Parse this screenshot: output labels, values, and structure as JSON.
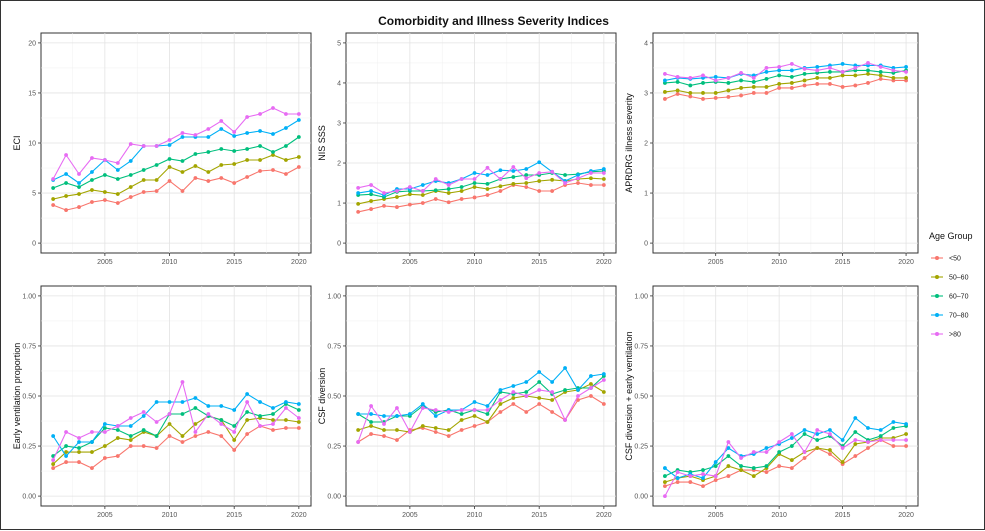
{
  "figure": {
    "title": "Comorbidity and Illness Severity Indices"
  },
  "legend": {
    "title": "Age Group",
    "items": [
      {
        "label": "<50",
        "color": "#F8766D"
      },
      {
        "label": "50–60",
        "color": "#A3A500"
      },
      {
        "label": "60–70",
        "color": "#00BF7D"
      },
      {
        "label": "70–80",
        "color": "#00B0F6"
      },
      {
        "label": ">80",
        "color": "#E76BF3"
      }
    ]
  },
  "chart_data": [
    {
      "type": "line",
      "ylabel": "ECI",
      "xlim": [
        2001,
        2020
      ],
      "ylim": [
        0,
        20
      ],
      "x_ticks": [
        2005,
        2010,
        2015,
        2020
      ],
      "y_ticks": [
        0,
        5,
        10,
        15,
        20
      ],
      "y_tick_labels": [
        "0",
        "5",
        "10",
        "15",
        "20"
      ],
      "x": [
        2001,
        2002,
        2003,
        2004,
        2005,
        2006,
        2007,
        2008,
        2009,
        2010,
        2011,
        2012,
        2013,
        2014,
        2015,
        2016,
        2017,
        2018,
        2019,
        2020
      ],
      "series": [
        {
          "name": "<50",
          "values": [
            3.8,
            3.3,
            3.6,
            4.1,
            4.3,
            4.0,
            4.6,
            5.1,
            5.2,
            6.2,
            5.2,
            6.5,
            6.2,
            6.5,
            6.0,
            6.6,
            7.2,
            7.3,
            6.9,
            7.6
          ]
        },
        {
          "name": "50–60",
          "values": [
            4.4,
            4.7,
            4.9,
            5.3,
            5.1,
            4.9,
            5.6,
            6.3,
            6.3,
            7.6,
            7.1,
            7.7,
            7.1,
            7.8,
            7.9,
            8.3,
            8.3,
            8.8,
            8.3,
            8.6
          ]
        },
        {
          "name": "60–70",
          "values": [
            5.5,
            6.0,
            5.6,
            6.3,
            6.8,
            6.4,
            6.8,
            7.3,
            7.8,
            8.4,
            8.2,
            8.9,
            9.1,
            9.4,
            9.2,
            9.4,
            9.7,
            9.1,
            9.7,
            10.6
          ]
        },
        {
          "name": "70–80",
          "values": [
            6.3,
            6.9,
            6.0,
            7.1,
            8.3,
            7.3,
            8.2,
            9.7,
            9.7,
            9.8,
            10.6,
            10.6,
            10.6,
            11.4,
            10.7,
            11.0,
            11.2,
            10.9,
            11.5,
            12.3
          ]
        },
        {
          "name": ">80",
          "values": [
            6.4,
            8.8,
            6.9,
            8.5,
            8.3,
            8.0,
            9.9,
            9.7,
            9.7,
            10.3,
            11.0,
            10.8,
            11.4,
            12.2,
            11.1,
            12.6,
            12.9,
            13.5,
            12.9,
            12.9
          ]
        }
      ]
    },
    {
      "type": "line",
      "ylabel": "NIS SSS",
      "xlim": [
        2001,
        2020
      ],
      "ylim": [
        0,
        5
      ],
      "x_ticks": [
        2005,
        2010,
        2015,
        2020
      ],
      "y_ticks": [
        0,
        1,
        2,
        3,
        4,
        5
      ],
      "y_tick_labels": [
        "0",
        "1",
        "2",
        "3",
        "4",
        "5"
      ],
      "x": [
        2001,
        2002,
        2003,
        2004,
        2005,
        2006,
        2007,
        2008,
        2009,
        2010,
        2011,
        2012,
        2013,
        2014,
        2015,
        2016,
        2017,
        2018,
        2019,
        2020
      ],
      "series": [
        {
          "name": "<50",
          "values": [
            0.78,
            0.85,
            0.93,
            0.9,
            0.96,
            1.0,
            1.1,
            1.02,
            1.1,
            1.14,
            1.2,
            1.3,
            1.45,
            1.4,
            1.3,
            1.3,
            1.45,
            1.5,
            1.45,
            1.45
          ]
        },
        {
          "name": "50–60",
          "values": [
            0.98,
            1.05,
            1.1,
            1.15,
            1.22,
            1.2,
            1.3,
            1.25,
            1.3,
            1.4,
            1.35,
            1.42,
            1.48,
            1.5,
            1.55,
            1.58,
            1.55,
            1.6,
            1.62,
            1.6
          ]
        },
        {
          "name": "60–70",
          "values": [
            1.2,
            1.22,
            1.15,
            1.28,
            1.3,
            1.3,
            1.32,
            1.35,
            1.4,
            1.5,
            1.48,
            1.6,
            1.65,
            1.7,
            1.7,
            1.75,
            1.7,
            1.72,
            1.78,
            1.8
          ]
        },
        {
          "name": "70–80",
          "values": [
            1.25,
            1.3,
            1.2,
            1.35,
            1.35,
            1.45,
            1.55,
            1.5,
            1.6,
            1.75,
            1.7,
            1.82,
            1.8,
            1.85,
            2.02,
            1.78,
            1.55,
            1.7,
            1.8,
            1.85
          ]
        },
        {
          "name": ">80",
          "values": [
            1.38,
            1.45,
            1.25,
            1.3,
            1.4,
            1.3,
            1.6,
            1.45,
            1.6,
            1.6,
            1.88,
            1.6,
            1.9,
            1.62,
            1.75,
            1.78,
            1.5,
            1.62,
            1.75,
            1.75
          ]
        }
      ]
    },
    {
      "type": "line",
      "ylabel": "APRDRG illness severity",
      "xlim": [
        2001,
        2020
      ],
      "ylim": [
        0,
        4
      ],
      "x_ticks": [
        2005,
        2010,
        2015,
        2020
      ],
      "y_ticks": [
        0,
        1,
        2,
        3,
        4
      ],
      "y_tick_labels": [
        "0",
        "1",
        "2",
        "3",
        "4"
      ],
      "x": [
        2001,
        2002,
        2003,
        2004,
        2005,
        2006,
        2007,
        2008,
        2009,
        2010,
        2011,
        2012,
        2013,
        2014,
        2015,
        2016,
        2017,
        2018,
        2019,
        2020
      ],
      "series": [
        {
          "name": "<50",
          "values": [
            2.88,
            2.98,
            2.93,
            2.88,
            2.9,
            2.92,
            2.95,
            3.0,
            3.0,
            3.1,
            3.1,
            3.15,
            3.18,
            3.18,
            3.12,
            3.15,
            3.2,
            3.28,
            3.25,
            3.25
          ]
        },
        {
          "name": "50–60",
          "values": [
            3.02,
            3.05,
            3.0,
            3.0,
            3.0,
            3.05,
            3.1,
            3.12,
            3.12,
            3.18,
            3.2,
            3.25,
            3.3,
            3.3,
            3.35,
            3.35,
            3.38,
            3.35,
            3.3,
            3.3
          ]
        },
        {
          "name": "60–70",
          "values": [
            3.2,
            3.22,
            3.15,
            3.2,
            3.22,
            3.2,
            3.25,
            3.22,
            3.28,
            3.35,
            3.32,
            3.38,
            3.4,
            3.42,
            3.42,
            3.45,
            3.45,
            3.42,
            3.4,
            3.45
          ]
        },
        {
          "name": "70–80",
          "values": [
            3.25,
            3.3,
            3.28,
            3.3,
            3.32,
            3.3,
            3.38,
            3.35,
            3.42,
            3.45,
            3.45,
            3.5,
            3.52,
            3.55,
            3.58,
            3.55,
            3.55,
            3.55,
            3.5,
            3.52
          ]
        },
        {
          "name": ">80",
          "values": [
            3.38,
            3.32,
            3.3,
            3.35,
            3.25,
            3.3,
            3.4,
            3.3,
            3.5,
            3.52,
            3.58,
            3.48,
            3.45,
            3.5,
            3.42,
            3.5,
            3.6,
            3.52,
            3.45,
            3.42
          ]
        }
      ]
    },
    {
      "type": "line",
      "ylabel": "Early ventilation proportion",
      "xlim": [
        2001,
        2020
      ],
      "ylim": [
        0,
        1
      ],
      "x_ticks": [
        2005,
        2010,
        2015,
        2020
      ],
      "y_ticks": [
        0,
        0.25,
        0.5,
        0.75,
        1
      ],
      "y_tick_labels": [
        "0.00",
        "0.25",
        "0.50",
        "0.75",
        "1.00"
      ],
      "x": [
        2001,
        2002,
        2003,
        2004,
        2005,
        2006,
        2007,
        2008,
        2009,
        2010,
        2011,
        2012,
        2013,
        2014,
        2015,
        2016,
        2017,
        2018,
        2019,
        2020
      ],
      "series": [
        {
          "name": "<50",
          "values": [
            0.14,
            0.17,
            0.17,
            0.14,
            0.19,
            0.2,
            0.25,
            0.25,
            0.24,
            0.3,
            0.27,
            0.3,
            0.32,
            0.3,
            0.23,
            0.31,
            0.35,
            0.33,
            0.34,
            0.34
          ]
        },
        {
          "name": "50–60",
          "values": [
            0.16,
            0.22,
            0.22,
            0.22,
            0.25,
            0.29,
            0.28,
            0.32,
            0.3,
            0.36,
            0.3,
            0.36,
            0.4,
            0.38,
            0.28,
            0.38,
            0.39,
            0.38,
            0.38,
            0.37
          ]
        },
        {
          "name": "60–70",
          "values": [
            0.2,
            0.25,
            0.24,
            0.27,
            0.34,
            0.33,
            0.3,
            0.33,
            0.3,
            0.41,
            0.41,
            0.44,
            0.4,
            0.38,
            0.35,
            0.42,
            0.4,
            0.41,
            0.46,
            0.43
          ]
        },
        {
          "name": "70–80",
          "values": [
            0.3,
            0.2,
            0.27,
            0.27,
            0.36,
            0.35,
            0.35,
            0.4,
            0.47,
            0.47,
            0.47,
            0.49,
            0.45,
            0.45,
            0.43,
            0.51,
            0.47,
            0.44,
            0.47,
            0.46
          ]
        },
        {
          "name": ">80",
          "values": [
            0.18,
            0.32,
            0.29,
            0.32,
            0.32,
            0.35,
            0.39,
            0.42,
            0.37,
            0.41,
            0.57,
            0.32,
            0.41,
            0.36,
            0.32,
            0.47,
            0.35,
            0.36,
            0.44,
            0.39
          ]
        }
      ]
    },
    {
      "type": "line",
      "ylabel": "CSF diversion",
      "xlim": [
        2001,
        2020
      ],
      "ylim": [
        0,
        1
      ],
      "x_ticks": [
        2005,
        2010,
        2015,
        2020
      ],
      "y_ticks": [
        0,
        0.25,
        0.5,
        0.75,
        1
      ],
      "y_tick_labels": [
        "0.00",
        "0.25",
        "0.50",
        "0.75",
        "1.00"
      ],
      "x": [
        2001,
        2002,
        2003,
        2004,
        2005,
        2006,
        2007,
        2008,
        2009,
        2010,
        2011,
        2012,
        2013,
        2014,
        2015,
        2016,
        2017,
        2018,
        2019,
        2020
      ],
      "series": [
        {
          "name": "<50",
          "values": [
            0.27,
            0.31,
            0.3,
            0.28,
            0.33,
            0.34,
            0.32,
            0.3,
            0.33,
            0.35,
            0.37,
            0.42,
            0.46,
            0.42,
            0.46,
            0.42,
            0.38,
            0.48,
            0.5,
            0.46
          ]
        },
        {
          "name": "50–60",
          "values": [
            0.33,
            0.35,
            0.33,
            0.33,
            0.32,
            0.35,
            0.34,
            0.33,
            0.38,
            0.4,
            0.37,
            0.46,
            0.49,
            0.5,
            0.49,
            0.48,
            0.52,
            0.53,
            0.56,
            0.52
          ]
        },
        {
          "name": "60–70",
          "values": [
            0.41,
            0.37,
            0.37,
            0.4,
            0.4,
            0.45,
            0.42,
            0.43,
            0.41,
            0.43,
            0.41,
            0.52,
            0.51,
            0.52,
            0.57,
            0.51,
            0.53,
            0.54,
            0.54,
            0.6
          ]
        },
        {
          "name": "70–80",
          "values": [
            0.41,
            0.41,
            0.4,
            0.4,
            0.41,
            0.46,
            0.4,
            0.43,
            0.43,
            0.47,
            0.45,
            0.53,
            0.55,
            0.57,
            0.62,
            0.57,
            0.64,
            0.53,
            0.6,
            0.61
          ]
        },
        {
          "name": ">80",
          "values": [
            0.27,
            0.45,
            0.36,
            0.44,
            0.32,
            0.44,
            0.43,
            0.42,
            0.43,
            0.43,
            0.43,
            0.48,
            0.52,
            0.5,
            0.53,
            0.52,
            0.38,
            0.5,
            0.54,
            0.58
          ]
        }
      ]
    },
    {
      "type": "line",
      "ylabel": "CSF diversion + early ventilation",
      "xlim": [
        2001,
        2020
      ],
      "ylim": [
        0,
        1
      ],
      "x_ticks": [
        2005,
        2010,
        2015,
        2020
      ],
      "y_ticks": [
        0,
        0.25,
        0.5,
        0.75,
        1
      ],
      "y_tick_labels": [
        "0.00",
        "0.25",
        "0.50",
        "0.75",
        "1.00"
      ],
      "x": [
        2001,
        2002,
        2003,
        2004,
        2005,
        2006,
        2007,
        2008,
        2009,
        2010,
        2011,
        2012,
        2013,
        2014,
        2015,
        2016,
        2017,
        2018,
        2019,
        2020
      ],
      "series": [
        {
          "name": "<50",
          "values": [
            0.05,
            0.07,
            0.07,
            0.05,
            0.08,
            0.1,
            0.13,
            0.13,
            0.12,
            0.15,
            0.14,
            0.19,
            0.24,
            0.21,
            0.16,
            0.2,
            0.24,
            0.28,
            0.25,
            0.25
          ]
        },
        {
          "name": "50–60",
          "values": [
            0.07,
            0.09,
            0.1,
            0.08,
            0.1,
            0.15,
            0.13,
            0.1,
            0.14,
            0.21,
            0.18,
            0.22,
            0.24,
            0.23,
            0.17,
            0.26,
            0.27,
            0.29,
            0.29,
            0.31
          ]
        },
        {
          "name": "60–70",
          "values": [
            0.1,
            0.13,
            0.12,
            0.13,
            0.15,
            0.2,
            0.15,
            0.14,
            0.15,
            0.22,
            0.25,
            0.31,
            0.28,
            0.3,
            0.25,
            0.32,
            0.28,
            0.3,
            0.34,
            0.35
          ]
        },
        {
          "name": "70–80",
          "values": [
            0.14,
            0.09,
            0.11,
            0.09,
            0.17,
            0.24,
            0.2,
            0.21,
            0.24,
            0.26,
            0.29,
            0.33,
            0.31,
            0.33,
            0.28,
            0.39,
            0.34,
            0.33,
            0.37,
            0.36
          ]
        },
        {
          "name": ">80",
          "values": [
            0.0,
            0.12,
            0.1,
            0.11,
            0.1,
            0.27,
            0.19,
            0.22,
            0.22,
            0.27,
            0.31,
            0.22,
            0.33,
            0.31,
            0.24,
            0.28,
            0.27,
            0.28,
            0.28,
            0.28
          ]
        }
      ]
    }
  ]
}
